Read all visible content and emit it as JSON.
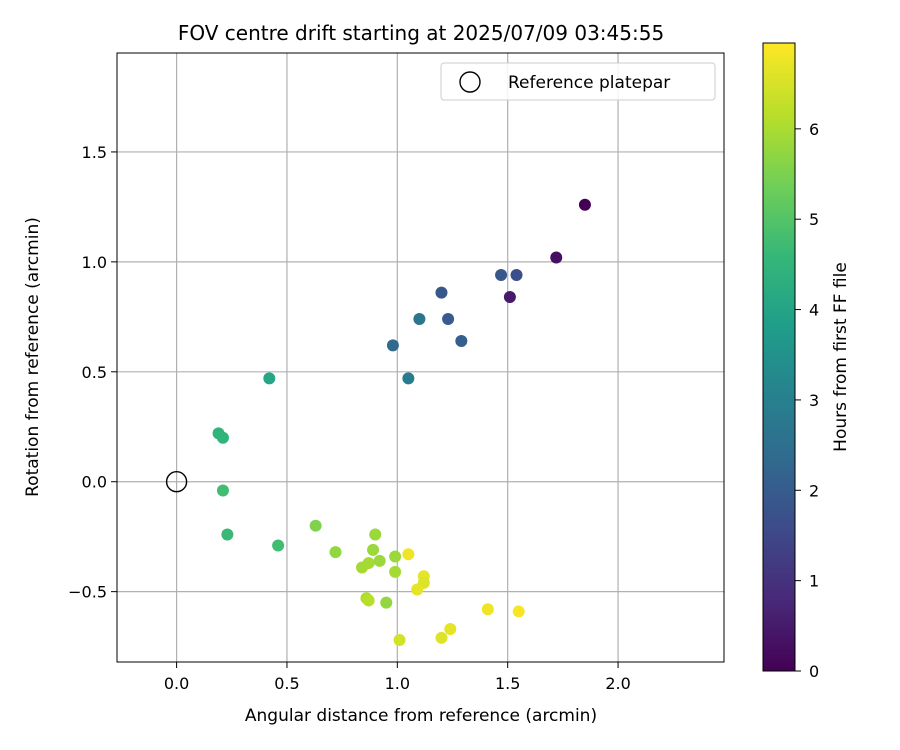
{
  "chart_data": {
    "type": "scatter",
    "title": "FOV centre drift starting at 2025/07/09 03:45:55",
    "xlabel": "Angular distance from reference (arcmin)",
    "ylabel": "Rotation from reference (arcmin)",
    "xlim": [
      -0.27,
      2.48
    ],
    "ylim": [
      -0.82,
      1.95
    ],
    "xticks": [
      0.0,
      0.5,
      1.0,
      1.5,
      2.0
    ],
    "xtick_labels": [
      "0.0",
      "0.5",
      "1.0",
      "1.5",
      "2.0"
    ],
    "yticks": [
      -0.5,
      0.0,
      0.5,
      1.0,
      1.5
    ],
    "ytick_labels": [
      "−0.5",
      "0.0",
      "0.5",
      "1.0",
      "1.5"
    ],
    "grid": true,
    "legend": {
      "position": "top-right",
      "entries": [
        "Reference platepar"
      ]
    },
    "reference": {
      "x": 0.0,
      "y": 0.0
    },
    "colorbar": {
      "label": "Hours from first FF file",
      "range": [
        0,
        6.95
      ],
      "ticks": [
        0,
        1,
        2,
        3,
        4,
        5,
        6
      ],
      "tick_labels": [
        "0",
        "1",
        "2",
        "3",
        "4",
        "5",
        "6"
      ],
      "colormap": "viridis"
    },
    "points": [
      {
        "x": 1.85,
        "y": 1.26,
        "c": 0.0
      },
      {
        "x": 1.72,
        "y": 1.02,
        "c": 0.3
      },
      {
        "x": 1.51,
        "y": 0.84,
        "c": 0.5
      },
      {
        "x": 1.54,
        "y": 0.94,
        "c": 1.7
      },
      {
        "x": 1.47,
        "y": 0.94,
        "c": 1.9
      },
      {
        "x": 1.2,
        "y": 0.86,
        "c": 1.9
      },
      {
        "x": 1.23,
        "y": 0.74,
        "c": 2.0
      },
      {
        "x": 1.29,
        "y": 0.64,
        "c": 2.1
      },
      {
        "x": 1.1,
        "y": 0.74,
        "c": 2.7
      },
      {
        "x": 0.98,
        "y": 0.62,
        "c": 2.4
      },
      {
        "x": 1.05,
        "y": 0.47,
        "c": 2.9
      },
      {
        "x": 0.42,
        "y": 0.47,
        "c": 4.1
      },
      {
        "x": 0.19,
        "y": 0.22,
        "c": 4.5
      },
      {
        "x": 0.21,
        "y": 0.2,
        "c": 4.5
      },
      {
        "x": 0.21,
        "y": -0.04,
        "c": 4.8
      },
      {
        "x": 0.23,
        "y": -0.24,
        "c": 4.7
      },
      {
        "x": 0.46,
        "y": -0.29,
        "c": 4.8
      },
      {
        "x": 0.63,
        "y": -0.2,
        "c": 5.6
      },
      {
        "x": 0.72,
        "y": -0.32,
        "c": 5.8
      },
      {
        "x": 0.9,
        "y": -0.24,
        "c": 5.9
      },
      {
        "x": 0.89,
        "y": -0.31,
        "c": 5.9
      },
      {
        "x": 0.92,
        "y": -0.36,
        "c": 5.9
      },
      {
        "x": 0.84,
        "y": -0.39,
        "c": 6.0
      },
      {
        "x": 0.87,
        "y": -0.37,
        "c": 6.0
      },
      {
        "x": 0.99,
        "y": -0.34,
        "c": 5.9
      },
      {
        "x": 0.99,
        "y": -0.41,
        "c": 6.0
      },
      {
        "x": 0.86,
        "y": -0.53,
        "c": 6.1
      },
      {
        "x": 0.87,
        "y": -0.54,
        "c": 6.2
      },
      {
        "x": 0.95,
        "y": -0.55,
        "c": 5.8
      },
      {
        "x": 1.05,
        "y": -0.33,
        "c": 6.8
      },
      {
        "x": 1.12,
        "y": -0.43,
        "c": 6.7
      },
      {
        "x": 1.12,
        "y": -0.46,
        "c": 6.6
      },
      {
        "x": 1.09,
        "y": -0.49,
        "c": 6.7
      },
      {
        "x": 1.01,
        "y": -0.72,
        "c": 6.5
      },
      {
        "x": 1.2,
        "y": -0.71,
        "c": 6.6
      },
      {
        "x": 1.24,
        "y": -0.67,
        "c": 6.7
      },
      {
        "x": 1.41,
        "y": -0.58,
        "c": 6.8
      },
      {
        "x": 1.55,
        "y": -0.59,
        "c": 6.9
      }
    ]
  }
}
